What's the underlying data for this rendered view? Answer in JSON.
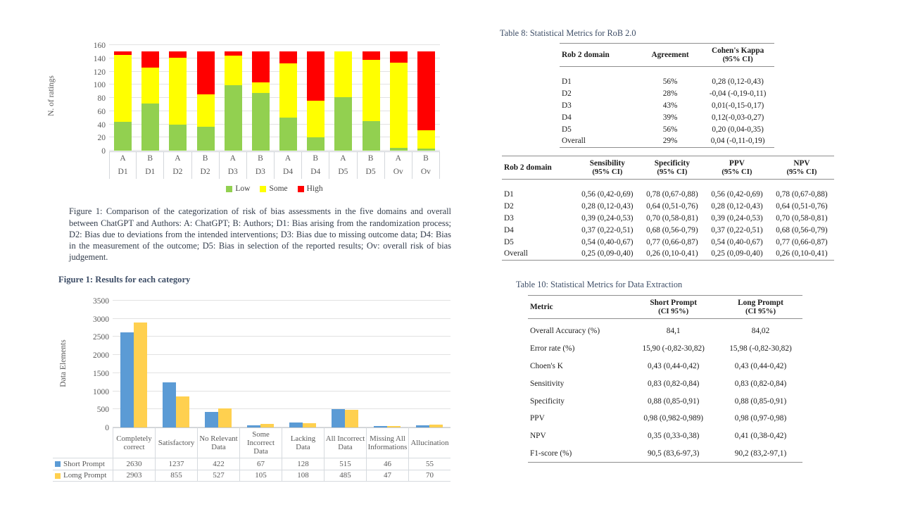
{
  "figure1": {
    "caption": "Figure 1: Comparison of the categorization of risk of bias assessments in the five domains and overall between ChatGPT and Authors: A: ChatGPT; B: Authors; D1: Bias arising from the randomization process; D2: Bias due to deviations from the intended interventions; D3: Bias due to missing outcome data; D4: Bias in the measurement of the outcome; D5: Bias in selection of the reported results; Ov: overall risk of bias judgement."
  },
  "chart_data": [
    {
      "type": "bar",
      "subtype": "stacked",
      "title": "",
      "ylabel": "N. of ratings",
      "ylim": [
        0,
        160
      ],
      "ytick_step": 20,
      "grid": true,
      "legend_position": "bottom",
      "categories": [
        "A",
        "B",
        "A",
        "B",
        "A",
        "B",
        "A",
        "B",
        "A",
        "B",
        "A",
        "B"
      ],
      "groups": [
        "D1",
        "D1",
        "D2",
        "D2",
        "D3",
        "D3",
        "D4",
        "D4",
        "D5",
        "D5",
        "Ov",
        "Ov"
      ],
      "series": [
        {
          "name": "Low",
          "color": "#92d050",
          "values": [
            44,
            71,
            39,
            36,
            99,
            87,
            50,
            20,
            81,
            45,
            4,
            3
          ]
        },
        {
          "name": "Some",
          "color": "#ffff00",
          "values": [
            101,
            55,
            102,
            49,
            45,
            17,
            82,
            56,
            69,
            93,
            129,
            28
          ]
        },
        {
          "name": "High",
          "color": "#ff0000",
          "values": [
            5,
            24,
            9,
            65,
            6,
            46,
            18,
            74,
            0,
            12,
            17,
            119
          ]
        }
      ]
    },
    {
      "type": "bar",
      "subtype": "grouped",
      "title": "Figure 1: Results for each category",
      "ylabel": "Data Elements",
      "ylim": [
        0,
        3500
      ],
      "ytick_step": 500,
      "grid": true,
      "legend_position": "data-table-left",
      "categories": [
        "Completely correct",
        "Satisfactory",
        "No Relevant Data",
        "Some Incorrect Data",
        "Lacking Data",
        "All Incorrect Data",
        "Missing All Informations",
        "Allucination"
      ],
      "series": [
        {
          "name": "Short Prompt",
          "color": "#5b9bd5",
          "values": [
            2630,
            1237,
            422,
            67,
            128,
            515,
            46,
            55
          ]
        },
        {
          "name": "Lomg Prompt",
          "color": "#ffd04f",
          "values": [
            2903,
            855,
            527,
            105,
            108,
            485,
            47,
            70
          ]
        }
      ]
    }
  ],
  "tables": {
    "table8": {
      "title": "Table 8: Statistical Metrics for RoB 2.0",
      "columns": [
        {
          "label": "Rob 2 domain"
        },
        {
          "label": "Agreement"
        },
        {
          "label": "Cohen's Kappa",
          "sub": "(95% CI)"
        }
      ],
      "rows": [
        [
          "D1",
          "56%",
          "0,28 (0,12-0,43)"
        ],
        [
          "D2",
          "28%",
          "-0,04 (-0,19-0,11)"
        ],
        [
          "D3",
          "43%",
          "0,01(-0,15-0,17)"
        ],
        [
          "D4",
          "39%",
          "0,12(-0,03-0,27)"
        ],
        [
          "D5",
          "56%",
          "0,20 (0,04-0,35)"
        ],
        [
          "Overall",
          "29%",
          "0,04 (-0,11-0,19)"
        ]
      ]
    },
    "rob2_metrics": {
      "columns": [
        {
          "label": "Rob 2 domain"
        },
        {
          "label": "Sensibility",
          "sub": "(95% CI)"
        },
        {
          "label": "Specificity",
          "sub": "(95% CI)"
        },
        {
          "label": "PPV",
          "sub": "(95% CI)"
        },
        {
          "label": "NPV",
          "sub": "(95% CI)"
        }
      ],
      "rows": [
        [
          "D1",
          "0,56 (0,42-0,69)",
          "0,78 (0,67-0,88)",
          "0,56 (0,42-0,69)",
          "0,78 (0,67-0,88)"
        ],
        [
          "D2",
          "0,28 (0,12-0,43)",
          "0,64 (0,51-0,76)",
          "0,28 (0,12-0,43)",
          "0,64 (0,51-0,76)"
        ],
        [
          "D3",
          "0,39 (0,24-0,53)",
          "0,70 (0,58-0,81)",
          "0,39 (0,24-0,53)",
          "0,70 (0,58-0,81)"
        ],
        [
          "D4",
          "0,37 (0,22-0,51)",
          "0,68 (0,56-0,79)",
          "0,37 (0,22-0,51)",
          "0,68 (0,56-0,79)"
        ],
        [
          "D5",
          "0,54 (0,40-0,67)",
          "0,77 (0,66-0,87)",
          "0,54 (0,40-0,67)",
          "0,77 (0,66-0,87)"
        ],
        [
          "Overall",
          "0,25 (0,09-0,40)",
          "0,26 (0,10-0,41)",
          "0,25 (0,09-0,40)",
          "0,26 (0,10-0,41)"
        ]
      ]
    },
    "table10": {
      "title": "Table 10: Statistical Metrics for Data Extraction",
      "columns": [
        {
          "label": "Metric"
        },
        {
          "label": "Short Prompt",
          "sub": "(CI 95%)"
        },
        {
          "label": "Long Prompt",
          "sub": "(CI 95%)"
        }
      ],
      "rows": [
        [
          "Overall Accuracy (%)",
          "84,1",
          "84,02"
        ],
        [
          "Error rate (%)",
          "15,90 (-0,82-30,82)",
          "15,98 (-0,82-30,82)"
        ],
        [
          "Choen's K",
          "0,43 (0,44-0,42)",
          "0,43 (0,44-0,42)"
        ],
        [
          "Sensitivity",
          "0,83 (0,82-0,84)",
          "0,83 (0,82-0,84)"
        ],
        [
          "Specificity",
          "0,88 (0,85-0,91)",
          "0,88 (0,85-0,91)"
        ],
        [
          "PPV",
          "0,98 (0,982-0,989)",
          "0,98 (0,97-0,98)"
        ],
        [
          "NPV",
          "0,35 (0,33-0,38)",
          "0,41 (0,38-0,42)"
        ],
        [
          "F1-score (%)",
          "90,5 (83,6-97,3)",
          "90,2 (83,2-97,1)"
        ]
      ]
    }
  }
}
